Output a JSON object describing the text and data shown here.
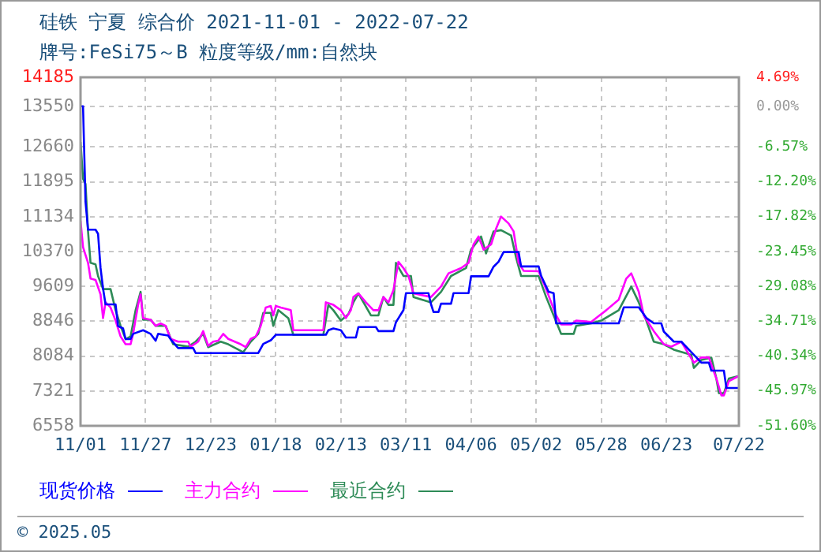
{
  "chart_data": {
    "type": "line",
    "title": "硅铁 宁夏 综合价 2021-11-01 - 2022-07-22",
    "subtitle": "牌号:FeSi75～B 粒度等级/mm:自然块",
    "annotations": [
      "© 2025.05"
    ],
    "xlim": [
      "2021-11-01",
      "2022-07-22"
    ],
    "xticks": [
      {
        "value": "2021-11-01",
        "label": "11/01"
      },
      {
        "value": "2021-11-27",
        "label": "11/27"
      },
      {
        "value": "2021-12-23",
        "label": "12/23"
      },
      {
        "value": "2022-01-18",
        "label": "01/18"
      },
      {
        "value": "2022-02-13",
        "label": "02/13"
      },
      {
        "value": "2022-03-11",
        "label": "03/11"
      },
      {
        "value": "2022-04-06",
        "label": "04/06"
      },
      {
        "value": "2022-05-02",
        "label": "05/02"
      },
      {
        "value": "2022-05-28",
        "label": "05/28"
      },
      {
        "value": "2022-06-23",
        "label": "06/23"
      },
      {
        "value": "2022-07-22",
        "label": "07/22"
      }
    ],
    "ylim": [
      6558,
      14185
    ],
    "yticks": [
      14185,
      13550,
      12660,
      11895,
      11134,
      10370,
      9609,
      8846,
      8084,
      7321,
      6558
    ],
    "y2lim": [
      -51.6,
      4.69
    ],
    "y2ticks": [
      {
        "value": 4.69,
        "label": "4.69%"
      },
      {
        "value": 0,
        "label": "0.00%"
      },
      {
        "value": -6.57,
        "label": "-6.57%"
      },
      {
        "value": -12.2,
        "label": "-12.20%"
      },
      {
        "value": -17.82,
        "label": "-17.82%"
      },
      {
        "value": -23.45,
        "label": "-23.45%"
      },
      {
        "value": -29.08,
        "label": "-29.08%"
      },
      {
        "value": -34.71,
        "label": "-34.71%"
      },
      {
        "value": -40.34,
        "label": "-40.34%"
      },
      {
        "value": -45.97,
        "label": "-45.97%"
      },
      {
        "value": -51.6,
        "label": "-51.60%"
      }
    ],
    "grid": true,
    "legend": "bottom",
    "marker": "none",
    "line_style": "solid",
    "series": [
      {
        "name": "现货价格",
        "color": "#0000ff",
        "x": [
          "2021-11-01",
          "2021-11-02",
          "2021-11-03",
          "2021-11-04",
          "2021-11-07",
          "2021-11-08",
          "2021-11-09",
          "2021-11-10",
          "2021-11-11",
          "2021-11-15",
          "2021-11-16",
          "2021-11-18",
          "2021-11-19",
          "2021-11-21",
          "2021-11-22",
          "2021-11-26",
          "2021-11-29",
          "2021-12-01",
          "2021-12-02",
          "2021-12-06",
          "2021-12-07",
          "2021-12-10",
          "2021-12-16",
          "2021-12-17",
          "2022-01-11",
          "2022-01-13",
          "2022-01-16",
          "2022-01-18",
          "2022-02-07",
          "2022-02-08",
          "2022-02-10",
          "2022-02-13",
          "2022-02-15",
          "2022-02-19",
          "2022-02-20",
          "2022-02-27",
          "2022-02-28",
          "2022-03-06",
          "2022-03-07",
          "2022-03-10",
          "2022-03-11",
          "2022-03-20",
          "2022-03-21",
          "2022-03-22",
          "2022-03-24",
          "2022-03-25",
          "2022-03-29",
          "2022-03-30",
          "2022-04-05",
          "2022-04-06",
          "2022-04-13",
          "2022-04-15",
          "2022-04-17",
          "2022-04-19",
          "2022-04-25",
          "2022-04-26",
          "2022-05-03",
          "2022-05-04",
          "2022-05-07",
          "2022-05-09",
          "2022-05-10",
          "2022-06-04",
          "2022-06-06",
          "2022-06-12",
          "2022-06-15",
          "2022-06-18",
          "2022-06-21",
          "2022-06-22",
          "2022-06-26",
          "2022-06-29",
          "2022-07-03",
          "2022-07-07",
          "2022-07-10",
          "2022-07-11",
          "2022-07-16",
          "2022-07-17",
          "2022-07-22"
        ],
        "values": [
          13550,
          13550,
          11460,
          10850,
          10850,
          10760,
          10010,
          9560,
          9215,
          9215,
          8740,
          8690,
          8455,
          8455,
          8570,
          8650,
          8570,
          8420,
          8570,
          8535,
          8450,
          8260,
          8260,
          8150,
          8150,
          8350,
          8430,
          8550,
          8550,
          8650,
          8690,
          8650,
          8490,
          8490,
          8720,
          8720,
          8630,
          8630,
          8825,
          9090,
          9460,
          9460,
          9220,
          9050,
          9050,
          9230,
          9230,
          9460,
          9460,
          9830,
          9830,
          10040,
          10150,
          10360,
          10360,
          10045,
          10045,
          9840,
          9490,
          9460,
          8800,
          8800,
          9150,
          9150,
          8920,
          8800,
          8800,
          8620,
          8400,
          8400,
          8170,
          7940,
          7940,
          7765,
          7765,
          7385,
          7385
        ]
      },
      {
        "name": "主力合约",
        "color": "#ff00ff",
        "x": [
          "2021-11-01",
          "2021-11-02",
          "2021-11-04",
          "2021-11-05",
          "2021-11-07",
          "2021-11-09",
          "2021-11-10",
          "2021-11-11",
          "2021-11-13",
          "2021-11-15",
          "2021-11-17",
          "2021-11-19",
          "2021-11-21",
          "2021-11-22",
          "2021-11-24",
          "2021-11-25",
          "2021-11-26",
          "2021-11-29",
          "2021-12-01",
          "2021-12-03",
          "2021-12-05",
          "2021-12-07",
          "2021-12-10",
          "2021-12-14",
          "2021-12-15",
          "2021-12-18",
          "2021-12-20",
          "2021-12-22",
          "2021-12-24",
          "2021-12-26",
          "2021-12-28",
          "2021-12-30",
          "2022-01-04",
          "2022-01-06",
          "2022-01-08",
          "2022-01-10",
          "2022-01-12",
          "2022-01-14",
          "2022-01-16",
          "2022-01-17",
          "2022-01-18",
          "2022-01-20",
          "2022-01-24",
          "2022-01-25",
          "2022-02-06",
          "2022-02-07",
          "2022-02-10",
          "2022-02-13",
          "2022-02-15",
          "2022-02-17",
          "2022-02-18",
          "2022-02-20",
          "2022-02-23",
          "2022-02-26",
          "2022-02-28",
          "2022-03-02",
          "2022-03-04",
          "2022-03-06",
          "2022-03-08",
          "2022-03-10",
          "2022-03-12",
          "2022-03-14",
          "2022-03-21",
          "2022-03-25",
          "2022-03-28",
          "2022-04-02",
          "2022-04-05",
          "2022-04-07",
          "2022-04-09",
          "2022-04-11",
          "2022-04-14",
          "2022-04-16",
          "2022-04-18",
          "2022-04-21",
          "2022-04-23",
          "2022-04-25",
          "2022-04-27",
          "2022-05-03",
          "2022-05-06",
          "2022-05-10",
          "2022-05-12",
          "2022-05-16",
          "2022-05-18",
          "2022-05-24",
          "2022-05-30",
          "2022-06-04",
          "2022-06-07",
          "2022-06-09",
          "2022-06-12",
          "2022-06-14",
          "2022-06-18",
          "2022-06-22",
          "2022-06-25",
          "2022-06-29",
          "2022-07-04",
          "2022-07-07",
          "2022-07-10",
          "2022-07-13",
          "2022-07-15",
          "2022-07-16",
          "2022-07-18",
          "2022-07-22"
        ],
        "values": [
          11045,
          10470,
          10124,
          9780,
          9750,
          9433,
          8915,
          9260,
          9147,
          8860,
          8515,
          8343,
          8343,
          8570,
          9205,
          9433,
          8915,
          8880,
          8745,
          8800,
          8745,
          8460,
          8400,
          8400,
          8290,
          8400,
          8630,
          8310,
          8400,
          8420,
          8570,
          8460,
          8343,
          8280,
          8460,
          8515,
          8745,
          9147,
          9180,
          8975,
          9180,
          9147,
          9090,
          8650,
          8650,
          9260,
          9205,
          9088,
          8915,
          9088,
          9377,
          9457,
          9260,
          9088,
          9088,
          9377,
          9260,
          9526,
          10147,
          10010,
          9837,
          9457,
          9377,
          9605,
          9895,
          10010,
          10124,
          10527,
          10700,
          10413,
          10527,
          10872,
          11138,
          10986,
          10813,
          10124,
          9950,
          9940,
          9550,
          8975,
          8777,
          8777,
          8860,
          8830,
          9088,
          9320,
          9780,
          9895,
          9490,
          8975,
          8630,
          8343,
          8290,
          8400,
          7940,
          8053,
          8053,
          7594,
          7225,
          7225,
          7535,
          7650
        ]
      },
      {
        "name": "最近合约",
        "color": "#2e8b57",
        "x": [
          "2021-11-01",
          "2021-11-02",
          "2021-11-03",
          "2021-11-04",
          "2021-11-05",
          "2021-11-07",
          "2021-11-08",
          "2021-11-10",
          "2021-11-13",
          "2021-11-15",
          "2021-11-17",
          "2021-11-19",
          "2021-11-21",
          "2021-11-23",
          "2021-11-25",
          "2021-11-26",
          "2021-11-29",
          "2021-12-01",
          "2021-12-05",
          "2021-12-08",
          "2021-12-14",
          "2021-12-17",
          "2021-12-20",
          "2021-12-22",
          "2021-12-27",
          "2021-12-30",
          "2022-01-05",
          "2022-01-08",
          "2022-01-11",
          "2022-01-13",
          "2022-01-16",
          "2022-01-17",
          "2022-01-19",
          "2022-01-23",
          "2022-01-25",
          "2022-02-06",
          "2022-02-08",
          "2022-02-10",
          "2022-02-13",
          "2022-02-16",
          "2022-02-18",
          "2022-02-20",
          "2022-02-25",
          "2022-02-28",
          "2022-03-02",
          "2022-03-04",
          "2022-03-06",
          "2022-03-07",
          "2022-03-10",
          "2022-03-13",
          "2022-03-14",
          "2022-03-21",
          "2022-03-25",
          "2022-03-29",
          "2022-04-04",
          "2022-04-06",
          "2022-04-10",
          "2022-04-12",
          "2022-04-15",
          "2022-04-18",
          "2022-04-22",
          "2022-04-24",
          "2022-04-26",
          "2022-05-03",
          "2022-05-06",
          "2022-05-09",
          "2022-05-12",
          "2022-05-17",
          "2022-05-18",
          "2022-05-24",
          "2022-05-28",
          "2022-06-04",
          "2022-06-09",
          "2022-06-12",
          "2022-06-15",
          "2022-06-18",
          "2022-06-22",
          "2022-06-26",
          "2022-07-03",
          "2022-07-04",
          "2022-07-07",
          "2022-07-11",
          "2022-07-13",
          "2022-07-14",
          "2022-07-16",
          "2022-07-18",
          "2022-07-22"
        ],
        "values": [
          12770,
          11966,
          11850,
          10813,
          10124,
          10090,
          9837,
          9550,
          9550,
          9088,
          8745,
          8455,
          8515,
          9088,
          9490,
          8880,
          8880,
          8745,
          8745,
          8343,
          8290,
          8400,
          8570,
          8280,
          8400,
          8343,
          8170,
          8400,
          8570,
          9030,
          9030,
          8745,
          9090,
          8915,
          8550,
          8550,
          9205,
          9088,
          8860,
          9000,
          9260,
          9457,
          8975,
          8975,
          9377,
          9205,
          9205,
          10124,
          9837,
          9837,
          9377,
          9260,
          9490,
          9837,
          10010,
          10413,
          10700,
          10330,
          10813,
          10840,
          10723,
          10240,
          9837,
          9837,
          9377,
          8975,
          8570,
          8570,
          8745,
          8800,
          8860,
          9088,
          9605,
          9260,
          8860,
          8400,
          8343,
          8225,
          8110,
          7825,
          8000,
          8050,
          7594,
          7272,
          7272,
          7594,
          7650
        ]
      }
    ]
  }
}
